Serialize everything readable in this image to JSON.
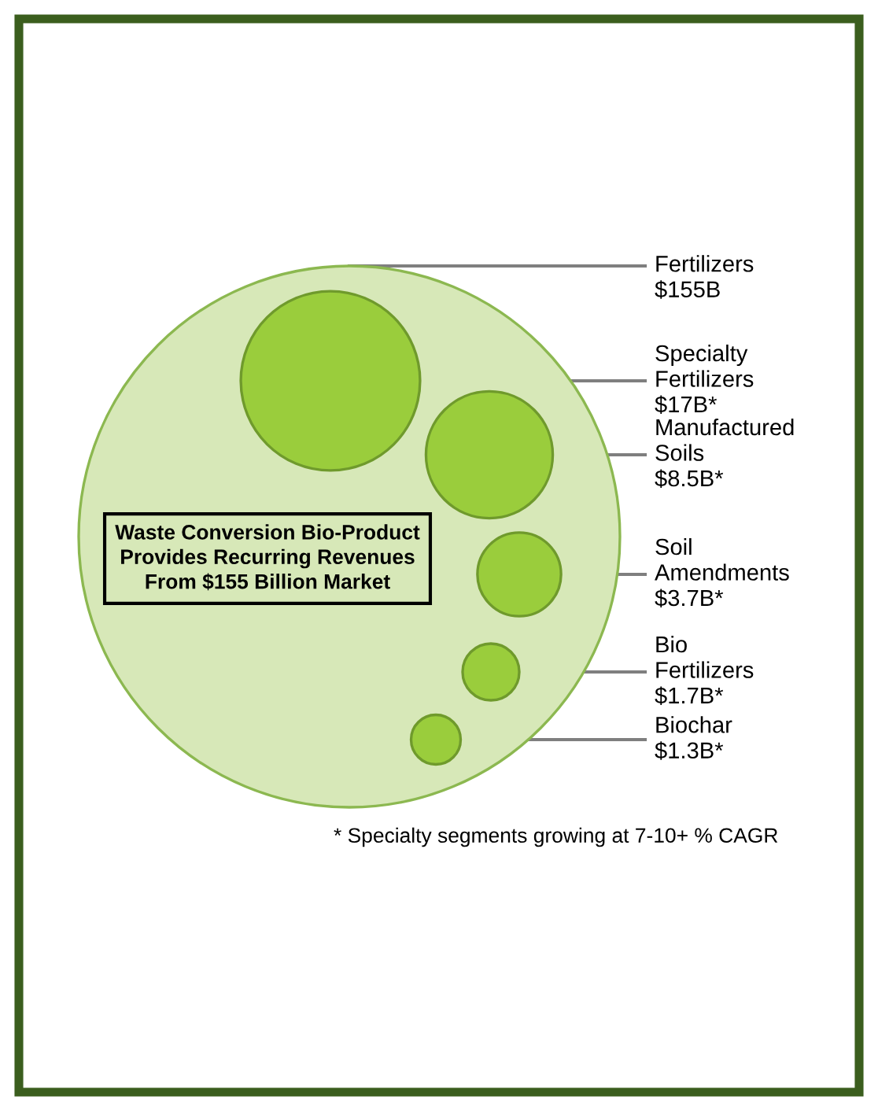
{
  "chart_data": {
    "type": "other",
    "categories": [
      "Fertilizers",
      "Specialty Fertilizers",
      "Manufactured Soils",
      "Soil Amendments",
      "Bio Fertilizers",
      "Biochar"
    ],
    "values": [
      155,
      17,
      8.5,
      3.7,
      1.7,
      1.3
    ],
    "value_labels": [
      "$155B",
      "$17B*",
      "$8.5B*",
      "$3.7B*",
      "$1.7B*",
      "$1.3B*"
    ],
    "colors": [
      "#d7e8b8",
      "#9acd3c",
      "#9acd3c",
      "#9acd3c",
      "#9acd3c",
      "#9acd3c"
    ],
    "annotations": [
      "Waste Conversion Bio-Product\nProvides Recurring Revenues\nFrom $155 Billion Market",
      "* Specialty segments growing at 7-10+ % CAGR"
    ]
  }
}
